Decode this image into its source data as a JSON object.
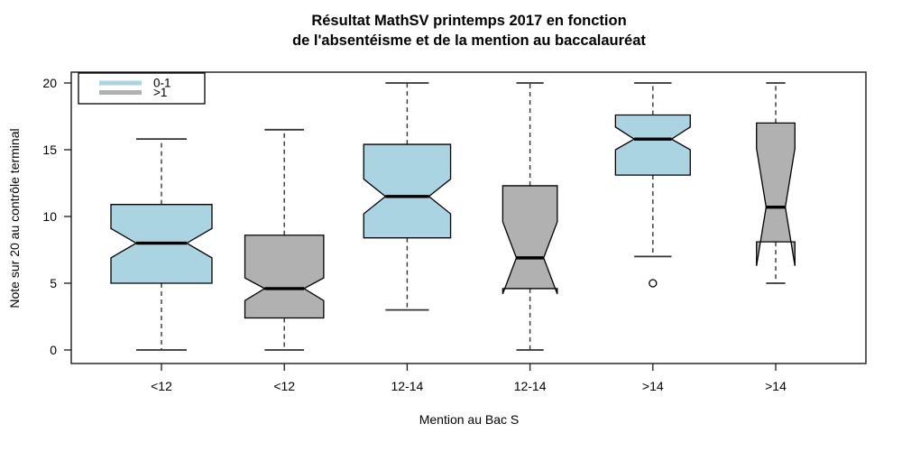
{
  "title": {
    "line1": "Résultat MathSV printemps 2017 en fonction",
    "line2": "de l'absentéisme et de la mention au baccalauréat"
  },
  "axes": {
    "y_label": "Note sur 20 au contrôle terminal",
    "x_label": "Mention au Bac S",
    "y_ticks": [
      0,
      5,
      10,
      15,
      20
    ],
    "x_categories": [
      "<12",
      "<12",
      "12-14",
      "12-14",
      ">14",
      ">14"
    ]
  },
  "legend": {
    "items": [
      {
        "label": "0-1",
        "color": "#ABD4E2"
      },
      {
        "label": ">1",
        "color": "#B1B1B1"
      }
    ]
  },
  "chart_data": {
    "type": "boxplot",
    "notched": true,
    "title": "Résultat MathSV printemps 2017 en fonction de l'absentéisme et de la mention au baccalauréat",
    "xlabel": "Mention au Bac S",
    "ylabel": "Note sur 20 au contrôle terminal",
    "ylim": [
      0,
      20
    ],
    "legend_title_groups": [
      "0-1",
      ">1"
    ],
    "boxes": [
      {
        "category": "<12",
        "group": "0-1",
        "color": "#ABD4E2",
        "rel_width": 1.0,
        "whisker_low": 0,
        "q1": 5.0,
        "median": 8.0,
        "q3": 10.9,
        "whisker_high": 15.8,
        "notch_low": 6.9,
        "notch_high": 9.1,
        "outliers": []
      },
      {
        "category": "<12",
        "group": ">1",
        "color": "#B1B1B1",
        "rel_width": 0.78,
        "whisker_low": 0,
        "q1": 2.4,
        "median": 4.6,
        "q3": 8.6,
        "whisker_high": 16.5,
        "notch_low": 3.7,
        "notch_high": 5.4,
        "outliers": []
      },
      {
        "category": "12-14",
        "group": "0-1",
        "color": "#ABD4E2",
        "rel_width": 0.86,
        "whisker_low": 3,
        "q1": 8.4,
        "median": 11.5,
        "q3": 15.4,
        "whisker_high": 20,
        "notch_low": 10.2,
        "notch_high": 12.8,
        "outliers": []
      },
      {
        "category": "12-14",
        "group": ">1",
        "color": "#B1B1B1",
        "rel_width": 0.54,
        "whisker_low": 0,
        "q1": 4.6,
        "median": 6.9,
        "q3": 12.3,
        "whisker_high": 20,
        "notch_low": 4.2,
        "notch_high": 9.6,
        "outliers": []
      },
      {
        "category": ">14",
        "group": "0-1",
        "color": "#ABD4E2",
        "rel_width": 0.74,
        "whisker_low": 7,
        "q1": 13.1,
        "median": 15.8,
        "q3": 17.6,
        "whisker_high": 20,
        "notch_low": 15.0,
        "notch_high": 16.7,
        "outliers": [
          5
        ]
      },
      {
        "category": ">14",
        "group": ">1",
        "color": "#B1B1B1",
        "rel_width": 0.38,
        "whisker_low": 5,
        "q1": 8.1,
        "median": 10.7,
        "q3": 17.0,
        "whisker_high": 20,
        "notch_low": 6.3,
        "notch_high": 15.1,
        "outliers": []
      }
    ]
  }
}
